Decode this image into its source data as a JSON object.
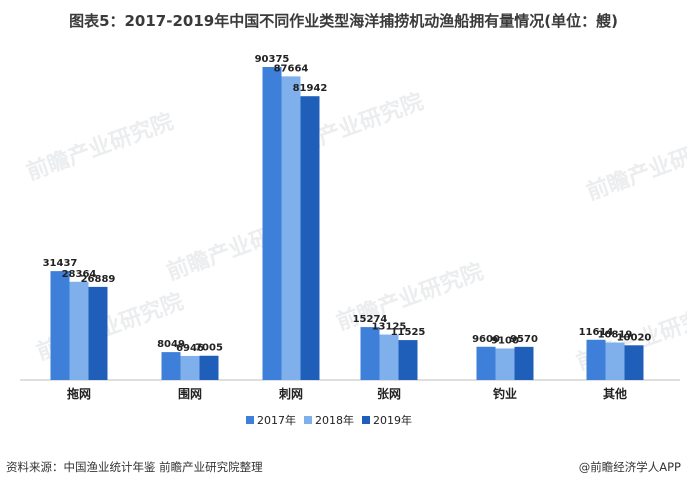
{
  "title": "图表5：2017-2019年中国不同作业类型海洋捕捞机动渔船拥有量情况(单位：艘)",
  "footer": {
    "source": "资料来源：中国渔业统计年鉴 前瞻产业研究院整理",
    "brand": "@前瞻经济学人APP"
  },
  "watermark": "前瞻产业研究院",
  "colors": {
    "2017": "#3e7fda",
    "2018": "#7fb0ec",
    "2019": "#1f5fba"
  },
  "chart_data": {
    "type": "bar",
    "title": "图表5：2017-2019年中国不同作业类型海洋捕捞机动渔船拥有量情况(单位：艘)",
    "xlabel": "",
    "ylabel": "",
    "categories": [
      "拖网",
      "围网",
      "刺网",
      "张网",
      "钓业",
      "其他"
    ],
    "series": [
      {
        "name": "2017年",
        "values": [
          31437,
          8049,
          90375,
          15274,
          9600,
          11614
        ]
      },
      {
        "name": "2018年",
        "values": [
          28364,
          6946,
          87664,
          13125,
          9100,
          10819
        ]
      },
      {
        "name": "2019年",
        "values": [
          26889,
          7005,
          81942,
          11525,
          9570,
          10020
        ]
      }
    ],
    "ylim": [
      0,
      100000
    ],
    "grid": false,
    "legend": "bottom-center"
  }
}
